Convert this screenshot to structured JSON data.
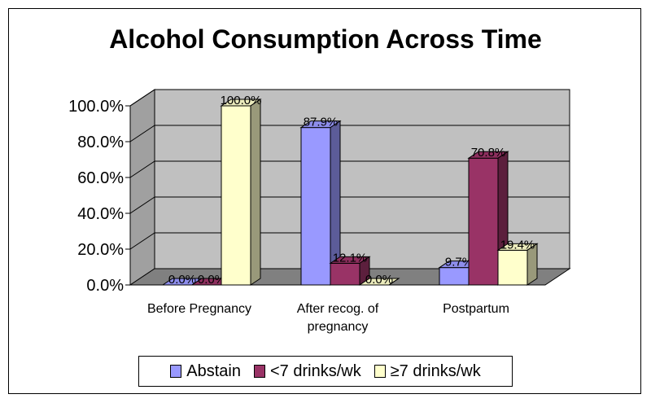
{
  "chart_data": {
    "type": "bar",
    "title": "Alcohol Consumption Across Time",
    "categories": [
      "Before Pregnancy",
      "After recog. of pregnancy",
      "Postpartum"
    ],
    "category_label_lines": [
      [
        "Before Pregnancy"
      ],
      [
        "After recog. of",
        "pregnancy"
      ],
      [
        "Postpartum"
      ]
    ],
    "series": [
      {
        "name": "Abstain",
        "values": [
          0.0,
          87.9,
          9.7
        ],
        "labels": [
          "0.0%",
          "87.9%",
          "9.7%"
        ],
        "color": "#9999FF"
      },
      {
        "name": "<7 drinks/wk",
        "values": [
          0.0,
          12.1,
          70.8
        ],
        "labels": [
          "0.0%",
          "12.1%",
          "70.8%"
        ],
        "color": "#993366"
      },
      {
        "name": "≥7 drinks/wk",
        "values": [
          100.0,
          0.0,
          19.4
        ],
        "labels": [
          "100.0%",
          "0.0%",
          "19.4%"
        ],
        "color": "#FFFFCC"
      }
    ],
    "ylim": [
      0,
      100
    ],
    "yticks": [
      "0.0%",
      "20.0%",
      "40.0%",
      "60.0%",
      "80.0%",
      "100.0%"
    ],
    "grid": true,
    "legend_position": "bottom",
    "style": "3d-clustered-column",
    "wall_color": "#C0C0C0",
    "floor_color": "#808080"
  }
}
